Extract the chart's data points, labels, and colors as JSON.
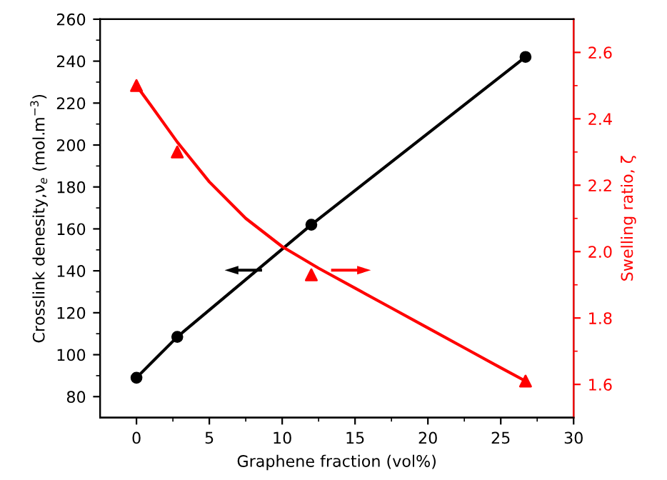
{
  "chart_data": {
    "type": "line",
    "xlabel": "Graphene fraction (vol%)",
    "ylabel": "Crosslink denesity,ν$_{e}$ (mol.m$^{−3}$)",
    "y2label": "Swelling ratio, ζ",
    "xlim": [
      -2.5,
      30
    ],
    "xticks": [
      0,
      5,
      10,
      15,
      20,
      25,
      30
    ],
    "ylim": [
      70,
      260
    ],
    "yticks": [
      80,
      100,
      120,
      140,
      160,
      180,
      200,
      220,
      240,
      260
    ],
    "y2lim": [
      1.5,
      2.7
    ],
    "y2ticks": [
      1.6,
      1.8,
      {
        "value": 2,
        "label": "2.0"
      },
      2.2,
      2.4,
      2.6
    ],
    "grid": false,
    "legend": false,
    "series": [
      {
        "color": "#000000",
        "marker": "circle",
        "x": [
          0,
          2.8,
          12,
          26.7
        ],
        "values": [
          89,
          108.5,
          162,
          242
        ]
      },
      {
        "type": "scatter",
        "axis": "y2",
        "color": "#ff0000",
        "marker": "triangle",
        "x": [
          0,
          2.8,
          12,
          26.7
        ],
        "values": [
          2.5,
          2.3,
          1.93,
          1.61
        ]
      },
      {
        "type": "line",
        "axis": "y2",
        "color": "#ff0000",
        "marker": "none",
        "x": [
          0,
          1,
          2.8,
          5,
          7.5,
          10,
          12.5,
          15,
          17.5,
          20,
          22.5,
          25,
          26.7
        ],
        "values": [
          2.5,
          2.44,
          2.33,
          2.21,
          2.1,
          2.015,
          1.95,
          1.89,
          1.83,
          1.77,
          1.71,
          1.65,
          1.61
        ]
      }
    ]
  }
}
